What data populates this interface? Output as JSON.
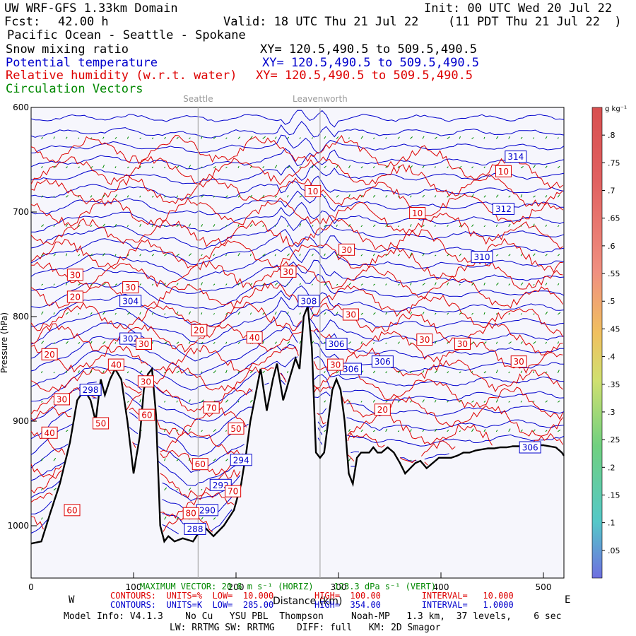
{
  "header": {
    "model": "UW WRF-GFS 1.33km Domain",
    "init": "Init: 00 UTC Wed 20 Jul 22",
    "fcst_label": "Fcst:",
    "fcst_value": "42.00 h",
    "valid": "Valid: 18 UTC Thu 21 Jul 22",
    "local": "(11 PDT Thu 21 Jul 22  )",
    "region": "Pacific Ocean - Seattle - Spokane"
  },
  "fields": [
    {
      "name": "Snow mixing ratio",
      "xy": "XY= 120.5,490.5 to 509.5,490.5",
      "color": "#000000"
    },
    {
      "name": "Potential temperature",
      "xy": "XY= 120.5,490.5 to 509.5,490.5",
      "color": "#0000cc"
    },
    {
      "name": "Relative humidity (w.r.t. water)",
      "xy": "XY= 120.5,490.5 to 509.5,490.5",
      "color": "#dd0000"
    },
    {
      "name": "Circulation Vectors",
      "xy": "",
      "color": "#008800"
    }
  ],
  "footer": {
    "max_vector": "MAXIMUM VECTOR: 20.6 m s⁻¹ (HORIZ)    123.3 dPa s⁻¹ (VERT)",
    "rh_contours": "CONTOURS:  UNITS=%  LOW=  10.000        HIGH=  100.00        INTERVAL=   10.000",
    "theta_contours": "CONTOURS:  UNITS=K  LOW=  285.00        HIGH=  354.00        INTERVAL=   1.0000",
    "model_info": "Model Info: V4.1.3    No Cu   YSU PBL  Thompson     Noah-MP   1.3 km,  37 levels,    6 sec",
    "physics": "LW: RRTMG SW: RRTMG    DIFF: full   KM: 2D Smagor"
  },
  "chart_data": {
    "type": "cross-section",
    "xlabel": "Distance (km)",
    "ylabel": "Pressure (hPa)",
    "xlim": [
      0,
      520
    ],
    "ylim": [
      1050,
      600
    ],
    "x_ticks": [
      0,
      100,
      200,
      300,
      400,
      500
    ],
    "y_ticks": [
      600,
      700,
      800,
      900,
      1000
    ],
    "west_label": "W",
    "east_label": "E",
    "locations": [
      {
        "name": "Seattle",
        "x": 163
      },
      {
        "name": "Leavenworth",
        "x": 282
      }
    ],
    "terrain": {
      "x": [
        0,
        10,
        18,
        28,
        38,
        45,
        52,
        58,
        63,
        68,
        72,
        77,
        82,
        88,
        94,
        100,
        106,
        110,
        114,
        118,
        122,
        126,
        130,
        134,
        140,
        148,
        158,
        168,
        178,
        188,
        198,
        205,
        210,
        214,
        218,
        224,
        230,
        236,
        240,
        246,
        252,
        258,
        262,
        266,
        270,
        274,
        278,
        282,
        286,
        290,
        294,
        298,
        302,
        306,
        310,
        314,
        318,
        322,
        326,
        330,
        334,
        338,
        342,
        348,
        354,
        360,
        365,
        370,
        375,
        380,
        386,
        392,
        398,
        404,
        410,
        416,
        422,
        428,
        434,
        440,
        446,
        452,
        458,
        464,
        470,
        476,
        482,
        488,
        494,
        500,
        506,
        512,
        518,
        520
      ],
      "p": [
        1017,
        1015,
        990,
        960,
        920,
        880,
        870,
        880,
        900,
        860,
        875,
        860,
        850,
        860,
        900,
        950,
        915,
        870,
        855,
        850,
        895,
        1000,
        1015,
        1010,
        1015,
        1012,
        1015,
        1000,
        1010,
        1000,
        985,
        960,
        930,
        900,
        880,
        850,
        890,
        860,
        845,
        880,
        860,
        840,
        850,
        800,
        790,
        830,
        930,
        935,
        930,
        900,
        870,
        860,
        870,
        900,
        950,
        960,
        935,
        930,
        930,
        930,
        925,
        930,
        930,
        925,
        930,
        940,
        950,
        945,
        940,
        938,
        945,
        940,
        935,
        935,
        935,
        933,
        930,
        930,
        928,
        927,
        926,
        926,
        925,
        925,
        924,
        924,
        924,
        923,
        923,
        923,
        924,
        925,
        930,
        933
      ]
    },
    "theta_labels": [
      {
        "value": "314",
        "x": 473,
        "p": 647
      },
      {
        "value": "312",
        "x": 461,
        "p": 697
      },
      {
        "value": "310",
        "x": 440,
        "p": 743
      },
      {
        "value": "308",
        "x": 271,
        "p": 785
      },
      {
        "value": "306",
        "x": 298,
        "p": 826
      },
      {
        "value": "306",
        "x": 312,
        "p": 850
      },
      {
        "value": "306",
        "x": 343,
        "p": 843
      },
      {
        "value": "306",
        "x": 487,
        "p": 925
      },
      {
        "value": "304",
        "x": 97,
        "p": 785
      },
      {
        "value": "302",
        "x": 97,
        "p": 821
      },
      {
        "value": "298",
        "x": 58,
        "p": 870
      },
      {
        "value": "294",
        "x": 205,
        "p": 937
      },
      {
        "value": "292",
        "x": 185,
        "p": 961
      },
      {
        "value": "290",
        "x": 172,
        "p": 985
      },
      {
        "value": "288",
        "x": 160,
        "p": 1003
      }
    ],
    "rh_labels": [
      {
        "value": "10",
        "x": 461,
        "p": 661
      },
      {
        "value": "10",
        "x": 275,
        "p": 680
      },
      {
        "value": "10",
        "x": 377,
        "p": 701
      },
      {
        "value": "30",
        "x": 43,
        "p": 760
      },
      {
        "value": "20",
        "x": 43,
        "p": 781
      },
      {
        "value": "30",
        "x": 97,
        "p": 772
      },
      {
        "value": "30",
        "x": 251,
        "p": 757
      },
      {
        "value": "30",
        "x": 308,
        "p": 736
      },
      {
        "value": "30",
        "x": 312,
        "p": 798
      },
      {
        "value": "20",
        "x": 164,
        "p": 813
      },
      {
        "value": "40",
        "x": 218,
        "p": 820
      },
      {
        "value": "30",
        "x": 384,
        "p": 822
      },
      {
        "value": "30",
        "x": 421,
        "p": 826
      },
      {
        "value": "30",
        "x": 476,
        "p": 843
      },
      {
        "value": "20",
        "x": 18,
        "p": 836
      },
      {
        "value": "30",
        "x": 110,
        "p": 826
      },
      {
        "value": "40",
        "x": 83,
        "p": 846
      },
      {
        "value": "30",
        "x": 112,
        "p": 862
      },
      {
        "value": "30",
        "x": 297,
        "p": 846
      },
      {
        "value": "30",
        "x": 30,
        "p": 879
      },
      {
        "value": "70",
        "x": 176,
        "p": 887
      },
      {
        "value": "20",
        "x": 343,
        "p": 889
      },
      {
        "value": "50",
        "x": 68,
        "p": 902
      },
      {
        "value": "40",
        "x": 18,
        "p": 911
      },
      {
        "value": "60",
        "x": 113,
        "p": 894
      },
      {
        "value": "50",
        "x": 200,
        "p": 907
      },
      {
        "value": "60",
        "x": 165,
        "p": 941
      },
      {
        "value": "70",
        "x": 197,
        "p": 967
      },
      {
        "value": "60",
        "x": 40,
        "p": 985
      },
      {
        "value": "80",
        "x": 156,
        "p": 988
      }
    ],
    "colorbar": {
      "unit": "g kg⁻¹",
      "ticks": [
        ".05",
        ".1",
        ".15",
        ".2",
        ".25",
        ".3",
        ".35",
        ".4",
        ".45",
        ".5",
        ".55",
        ".6",
        ".65",
        ".7",
        ".75",
        ".8"
      ],
      "min": 0,
      "max": 0.85
    },
    "grid": false
  }
}
